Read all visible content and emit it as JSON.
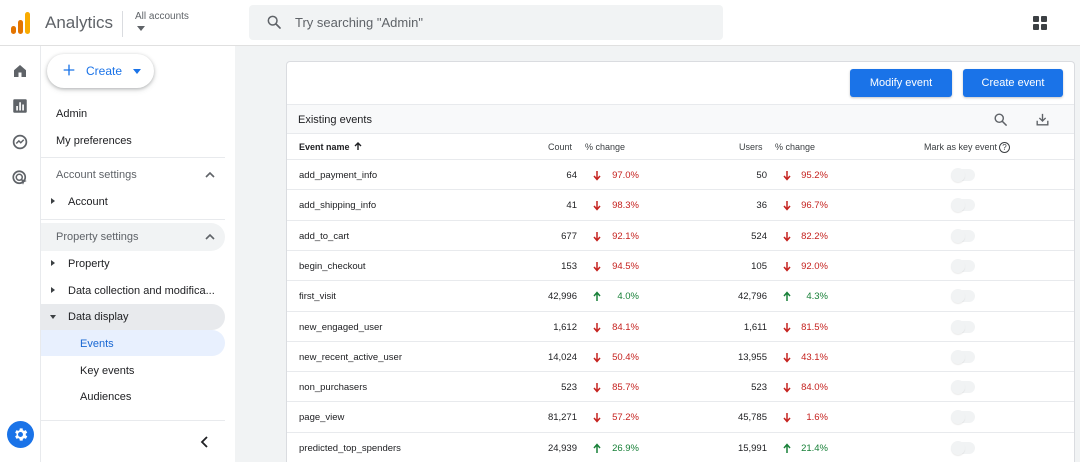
{
  "header": {
    "app_title": "Analytics",
    "account_label": "All accounts",
    "search_placeholder": "Try searching \"Admin\"",
    "logo_colors": [
      "#f9ab00",
      "#e37400",
      "#e37400"
    ]
  },
  "rail": {
    "icons": [
      "home-icon",
      "reports-icon",
      "explore-icon",
      "advertising-icon"
    ],
    "settings_icon": "gear-icon"
  },
  "nav": {
    "create_label": "Create",
    "admin": "Admin",
    "my_preferences": "My preferences",
    "account_settings": "Account settings",
    "account": "Account",
    "property_settings": "Property settings",
    "property": "Property",
    "data_collection": "Data collection and modifica...",
    "data_display": "Data display",
    "events": "Events",
    "key_events": "Key events",
    "audiences": "Audiences"
  },
  "toolbar": {
    "modify_event": "Modify event",
    "create_event": "Create event",
    "existing_events": "Existing events"
  },
  "table": {
    "columns": {
      "event_name": "Event name",
      "count": "Count",
      "count_change": "% change",
      "users": "Users",
      "users_change": "% change",
      "key_event": "Mark as key event"
    },
    "rows": [
      {
        "name": "add_payment_info",
        "count": "64",
        "count_dir": "down",
        "count_change": "97.0%",
        "users": "50",
        "users_dir": "down",
        "users_change": "95.2%"
      },
      {
        "name": "add_shipping_info",
        "count": "41",
        "count_dir": "down",
        "count_change": "98.3%",
        "users": "36",
        "users_dir": "down",
        "users_change": "96.7%"
      },
      {
        "name": "add_to_cart",
        "count": "677",
        "count_dir": "down",
        "count_change": "92.1%",
        "users": "524",
        "users_dir": "down",
        "users_change": "82.2%"
      },
      {
        "name": "begin_checkout",
        "count": "153",
        "count_dir": "down",
        "count_change": "94.5%",
        "users": "105",
        "users_dir": "down",
        "users_change": "92.0%"
      },
      {
        "name": "first_visit",
        "count": "42,996",
        "count_dir": "up",
        "count_change": "4.0%",
        "users": "42,796",
        "users_dir": "up",
        "users_change": "4.3%"
      },
      {
        "name": "new_engaged_user",
        "count": "1,612",
        "count_dir": "down",
        "count_change": "84.1%",
        "users": "1,611",
        "users_dir": "down",
        "users_change": "81.5%"
      },
      {
        "name": "new_recent_active_user",
        "count": "14,024",
        "count_dir": "down",
        "count_change": "50.4%",
        "users": "13,955",
        "users_dir": "down",
        "users_change": "43.1%"
      },
      {
        "name": "non_purchasers",
        "count": "523",
        "count_dir": "down",
        "count_change": "85.7%",
        "users": "523",
        "users_dir": "down",
        "users_change": "84.0%"
      },
      {
        "name": "page_view",
        "count": "81,271",
        "count_dir": "down",
        "count_change": "57.2%",
        "users": "45,785",
        "users_dir": "down",
        "users_change": "1.6%"
      },
      {
        "name": "predicted_top_spenders",
        "count": "24,939",
        "count_dir": "up",
        "count_change": "26.9%",
        "users": "15,991",
        "users_dir": "up",
        "users_change": "21.4%"
      }
    ]
  },
  "colors": {
    "accent": "#1a73e8",
    "down": "#c5221f",
    "up": "#188038",
    "active_nav": "#e8f0fe",
    "selected_group": "#e8eaed"
  }
}
